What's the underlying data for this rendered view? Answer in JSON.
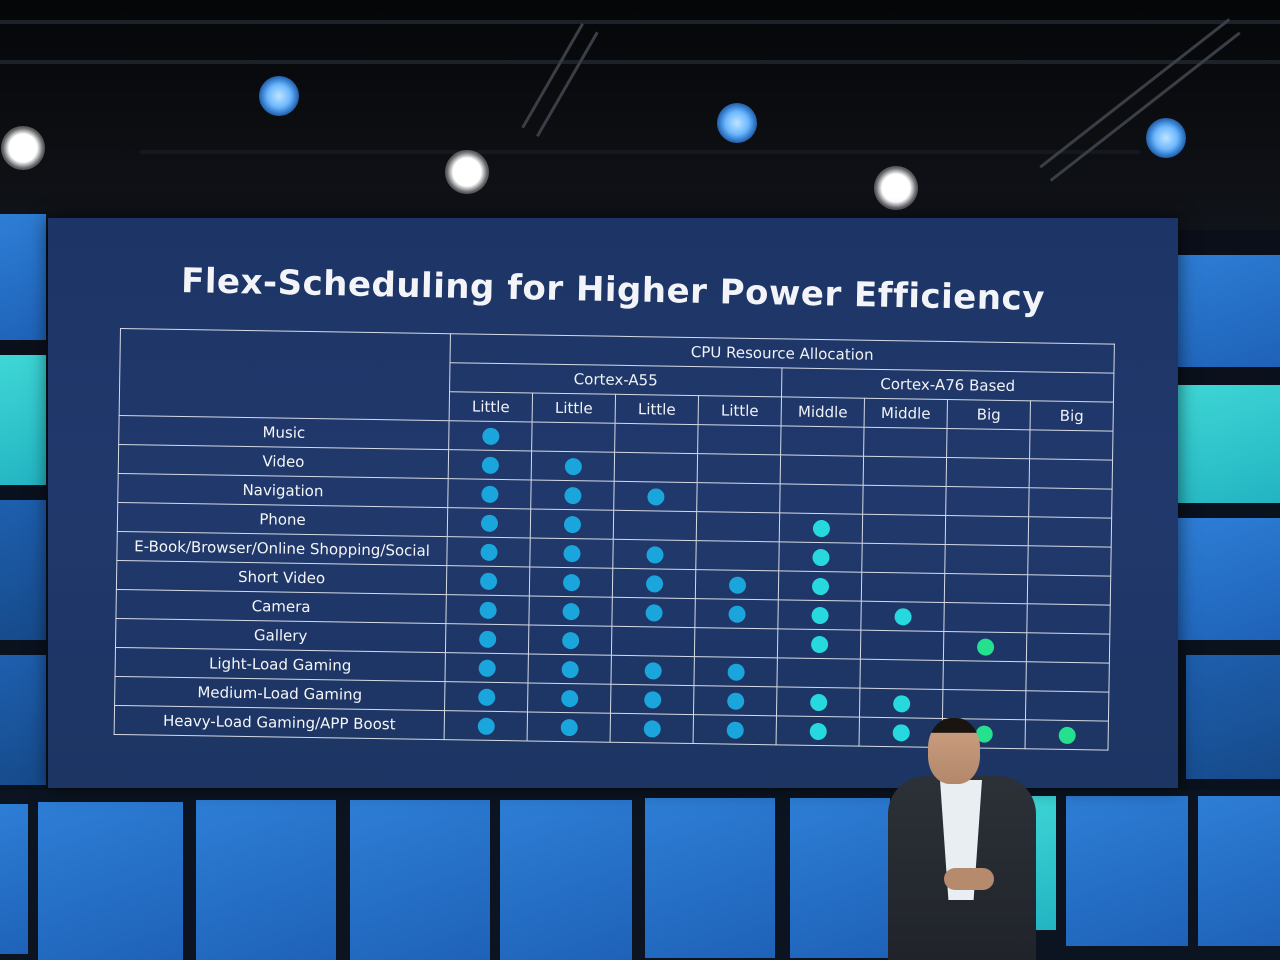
{
  "slide": {
    "title": "Flex-Scheduling for Higher Power Efficiency",
    "header": {
      "group": "CPU Resource Allocation",
      "clusters": [
        "Cortex-A55",
        "Cortex-A76 Based"
      ],
      "cores": [
        "Little",
        "Little",
        "Little",
        "Little",
        "Middle",
        "Middle",
        "Big",
        "Big"
      ]
    },
    "rows": [
      {
        "label": "Music",
        "cores": [
          1,
          0,
          0,
          0,
          0,
          0,
          0,
          0
        ]
      },
      {
        "label": "Video",
        "cores": [
          1,
          1,
          0,
          0,
          0,
          0,
          0,
          0
        ]
      },
      {
        "label": "Navigation",
        "cores": [
          1,
          1,
          1,
          0,
          0,
          0,
          0,
          0
        ]
      },
      {
        "label": "Phone",
        "cores": [
          1,
          1,
          0,
          0,
          1,
          0,
          0,
          0
        ]
      },
      {
        "label": "E-Book/Browser/Online Shopping/Social",
        "cores": [
          1,
          1,
          1,
          0,
          1,
          0,
          0,
          0
        ]
      },
      {
        "label": "Short Video",
        "cores": [
          1,
          1,
          1,
          1,
          1,
          0,
          0,
          0
        ]
      },
      {
        "label": "Camera",
        "cores": [
          1,
          1,
          1,
          1,
          1,
          1,
          0,
          0
        ]
      },
      {
        "label": "Gallery",
        "cores": [
          1,
          1,
          0,
          0,
          1,
          0,
          1,
          0
        ]
      },
      {
        "label": "Light-Load Gaming",
        "cores": [
          1,
          1,
          1,
          1,
          0,
          0,
          0,
          0
        ]
      },
      {
        "label": "Medium-Load Gaming",
        "cores": [
          1,
          1,
          1,
          1,
          1,
          1,
          0,
          0
        ]
      },
      {
        "label": "Heavy-Load Gaming/APP Boost",
        "cores": [
          1,
          1,
          1,
          1,
          1,
          1,
          1,
          1
        ]
      }
    ],
    "colors": {
      "screen_bg": "#1f376a",
      "little_dot": "#1aa6dc",
      "middle_dot": "#27d9df",
      "big_dot": "#25e08e"
    }
  }
}
